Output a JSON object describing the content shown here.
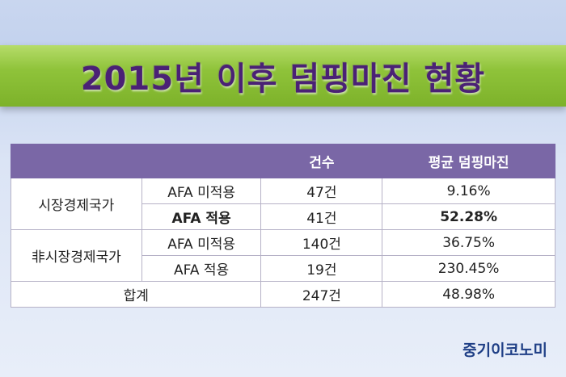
{
  "title": "2015년 이후 덤핑마진 현황",
  "table": {
    "headers": [
      "",
      "",
      "건수",
      "평균 덤핑마진"
    ],
    "groups": [
      {
        "name": "시장경제국가",
        "rows": [
          {
            "type": "AFA 미적용",
            "count": "47건",
            "rate": "9.16%"
          },
          {
            "type": "AFA 적용",
            "count": "41건",
            "rate": "52.28%"
          }
        ]
      },
      {
        "name": "非시장경제국가",
        "rows": [
          {
            "type": "AFA 미적용",
            "count": "140건",
            "rate": "36.75%"
          },
          {
            "type": "AFA 적용",
            "count": "19건",
            "rate": "230.45%"
          }
        ]
      }
    ],
    "total": {
      "label": "합계",
      "count": "247건",
      "rate": "48.98%"
    }
  },
  "logo": "중기이코노미"
}
